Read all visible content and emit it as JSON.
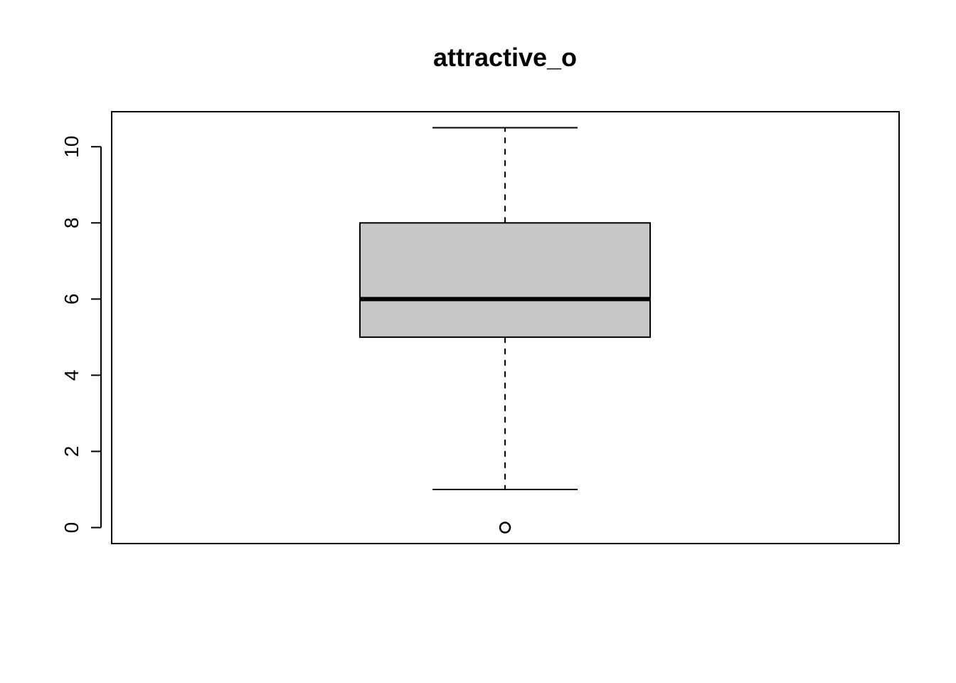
{
  "chart_data": {
    "type": "boxplot",
    "title": "attractive_o",
    "xlabel": "",
    "ylabel": "",
    "ylim": [
      -0.42,
      10.92
    ],
    "y_ticks": [
      0,
      2,
      4,
      6,
      8,
      10
    ],
    "box": {
      "whisker_low": 1,
      "q1": 5,
      "median": 6,
      "q3": 8,
      "whisker_high": 10.5,
      "outliers": [
        0
      ]
    },
    "grid": false,
    "legend": "none"
  },
  "colors": {
    "box_fill": "#c8c8c8",
    "stroke": "#000000",
    "background": "#ffffff"
  }
}
